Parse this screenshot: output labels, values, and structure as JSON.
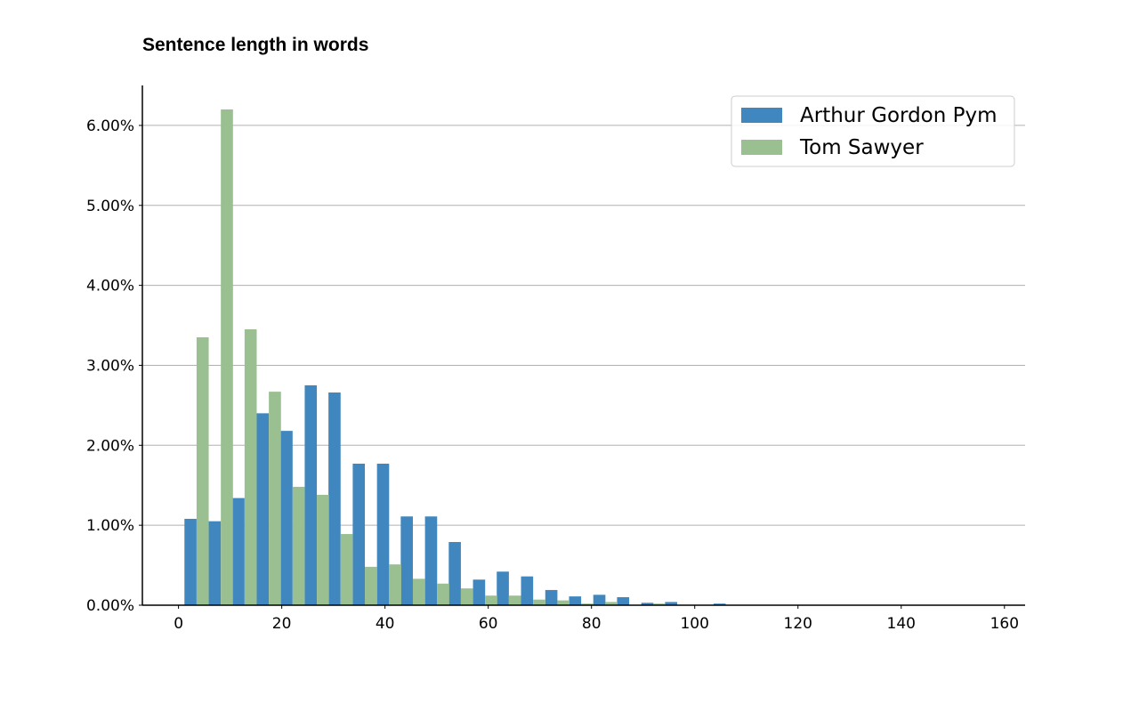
{
  "chart_data": {
    "type": "bar",
    "title": "Sentence length in words",
    "xlabel": "",
    "ylabel": "",
    "xlim": [
      -7,
      164
    ],
    "ylim": [
      0,
      6.5
    ],
    "x_ticks": [
      0,
      20,
      40,
      60,
      80,
      100,
      120,
      140,
      160
    ],
    "y_ticks": [
      0,
      1,
      2,
      3,
      4,
      5,
      6
    ],
    "y_tick_labels": [
      "0.00%",
      "1.00%",
      "2.00%",
      "3.00%",
      "4.00%",
      "5.00%",
      "6.00%"
    ],
    "grid": "horizontal",
    "legend": "top-right",
    "bin_centers": [
      3.5,
      8.2,
      12.8,
      17.5,
      22.1,
      26.8,
      31.4,
      36.1,
      40.8,
      45.4,
      50.1,
      54.7,
      59.4,
      64.0,
      68.7,
      73.4,
      78.0,
      82.7,
      87.3,
      92.0,
      96.6,
      101.3,
      106.0,
      110.6
    ],
    "series": [
      {
        "name": "Arthur Gordon Pym",
        "color": "#3f87be",
        "values": [
          1.08,
          1.05,
          1.34,
          2.4,
          2.18,
          2.75,
          2.66,
          1.77,
          1.77,
          1.11,
          1.11,
          0.79,
          0.32,
          0.42,
          0.36,
          0.19,
          0.11,
          0.13,
          0.1,
          0.03,
          0.04,
          0.0,
          0.02,
          0.0
        ]
      },
      {
        "name": "Tom Sawyer",
        "color": "#9abf91",
        "values": [
          3.35,
          6.2,
          3.45,
          2.67,
          1.48,
          1.38,
          0.89,
          0.48,
          0.51,
          0.33,
          0.27,
          0.21,
          0.12,
          0.12,
          0.07,
          0.06,
          0.02,
          0.04,
          0.0,
          0.02,
          0.0,
          0.0,
          0.0,
          0.0
        ]
      }
    ]
  }
}
